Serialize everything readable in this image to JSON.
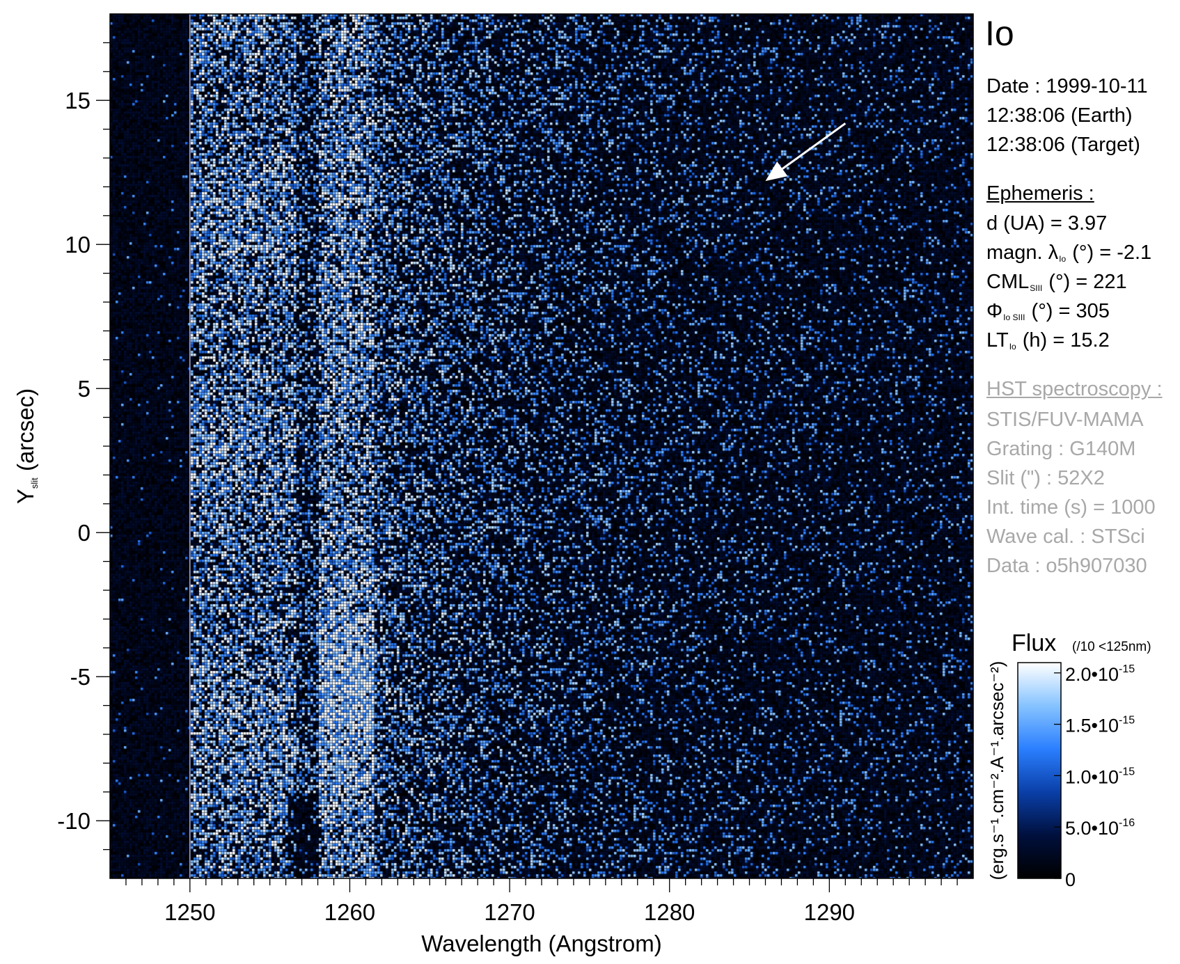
{
  "chart_data": {
    "type": "heatmap",
    "title": "Io",
    "xlabel": "Wavelength (Angstrom)",
    "ylabel": {
      "main": "Y",
      "sub": "slit",
      "rest": " (arcsec)"
    },
    "xlim": [
      1245,
      1299
    ],
    "ylim": [
      -12,
      18
    ],
    "xticks": [
      "1250",
      "1260",
      "1270",
      "1280",
      "1290"
    ],
    "xtick_values": [
      1250,
      1260,
      1270,
      1280,
      1290
    ],
    "yticks": [
      "15",
      "10",
      "5",
      "0",
      "-5",
      "-10"
    ],
    "ytick_values": [
      15,
      10,
      5,
      0,
      -5,
      -10
    ],
    "emission_bands": [
      {
        "x_range": [
          1250,
          1256.5
        ],
        "intensity": "high"
      },
      {
        "x_range": [
          1256.5,
          1258
        ],
        "intensity": "medium"
      },
      {
        "x_range": [
          1258,
          1261.5
        ],
        "intensity": "highest",
        "peak_y": -5.5
      },
      {
        "x_range": [
          1261.5,
          1299
        ],
        "intensity": "low",
        "falloff": "gradual"
      }
    ],
    "dark_region_x": [
      1245,
      1250
    ],
    "colormap": [
      "#000000",
      "#00103e",
      "#0a3fa8",
      "#2b7fff",
      "#86c3ff",
      "#ffffff"
    ],
    "annotation": {
      "type": "arrow",
      "from": [
        1291,
        14.2
      ],
      "to": [
        1286,
        12.2
      ],
      "color": "#ffffff"
    }
  },
  "info": {
    "date_line": "Date : 1999-10-11",
    "earth_line": "12:38:06 (Earth)",
    "target_line": "12:38:06 (Target)",
    "ephemeris_heading": "Ephemeris :",
    "eph": [
      {
        "pre": "d (UA)",
        "sub": "",
        "post": "",
        "val": "= 3.97"
      },
      {
        "pre": "magn. λ",
        "sub": "Io",
        "post": " (°)",
        "val": "= -2.1"
      },
      {
        "pre": "CML",
        "sub": "SIII",
        "post": " (°)",
        "val": "= 221"
      },
      {
        "pre": "Φ",
        "sub": "Io SIII",
        "post": " (°)",
        "val": "= 305"
      },
      {
        "pre": "LT",
        "sub": "Io",
        "post": " (h)",
        "val": "= 15.2"
      }
    ],
    "hst_heading": "HST spectroscopy :",
    "hst": [
      "STIS/FUV-MAMA",
      "Grating : G140M",
      "Slit (\") : 52X2",
      "Int. time (s) = 1000",
      "Wave cal. : STSci",
      "Data : o5h907030"
    ]
  },
  "colorbar": {
    "title": "Flux",
    "note": "(/10 <125nm)",
    "unit_label": "(erg.s⁻¹.cm⁻².A⁻¹.arcsec⁻²)",
    "range": [
      0,
      2.1e-15
    ],
    "ticks": [
      {
        "value": 2e-15,
        "mant": "2.0•10",
        "exp": "-15"
      },
      {
        "value": 1.5e-15,
        "mant": "1.5•10",
        "exp": "-15"
      },
      {
        "value": 1e-15,
        "mant": "1.0•10",
        "exp": "-15"
      },
      {
        "value": 5e-16,
        "mant": "5.0•10",
        "exp": "-16"
      },
      {
        "value": 0,
        "mant": "0",
        "exp": ""
      }
    ]
  }
}
